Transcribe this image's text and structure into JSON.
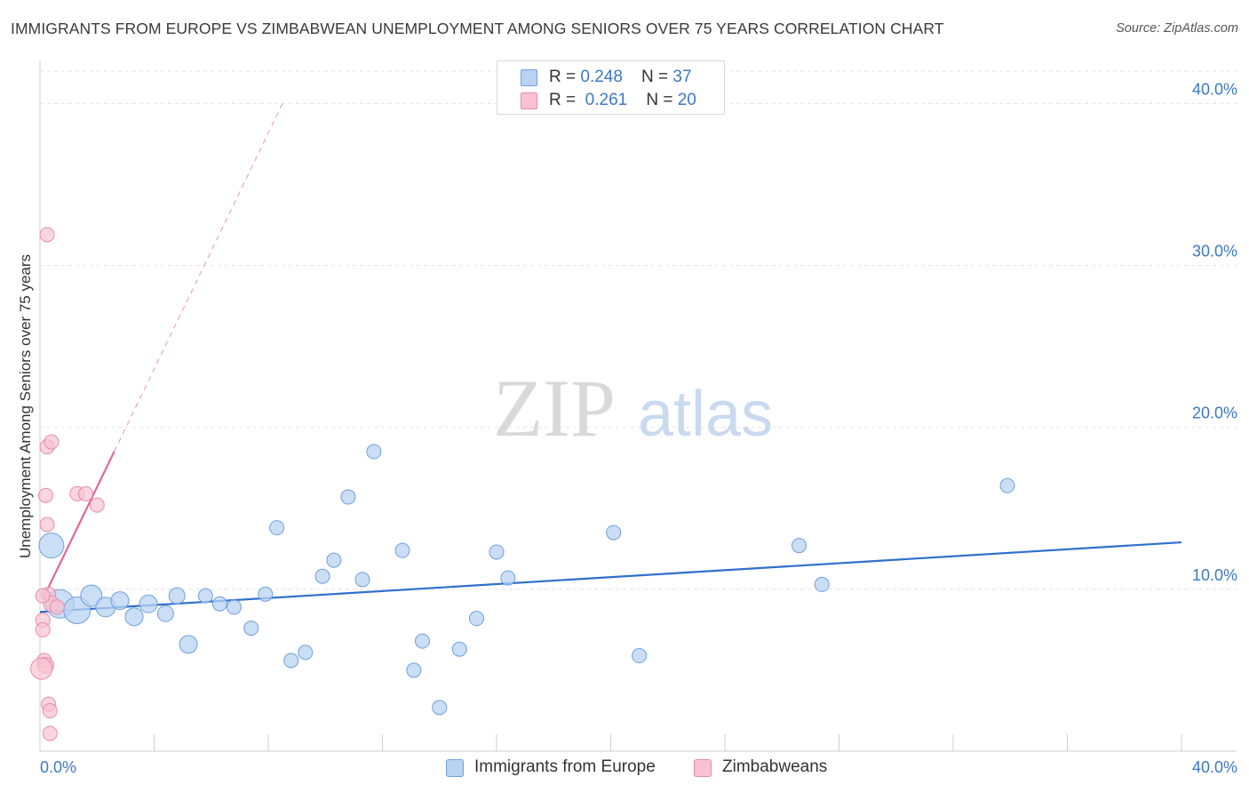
{
  "header": {
    "title": "IMMIGRANTS FROM EUROPE VS ZIMBABWEAN UNEMPLOYMENT AMONG SENIORS OVER 75 YEARS CORRELATION CHART",
    "source": "Source: ZipAtlas.com"
  },
  "legend": {
    "rows": [
      {
        "r_label": "R = ",
        "r_value": "0.248",
        "n_label": "N = ",
        "n_value": "37"
      },
      {
        "r_label": "R = ",
        "r_value": "0.261",
        "n_label": "N = ",
        "n_value": "20"
      }
    ]
  },
  "bottom_legend": {
    "series_a": "Immigrants from Europe",
    "series_b": "Zimbabweans"
  },
  "watermark": {
    "zip": "ZIP",
    "atlas": "atlas"
  },
  "colors": {
    "blue_fill": "#b8d3f2",
    "blue_stroke": "#6f9fdc",
    "blue_line": "#2f6fce",
    "pink_fill": "#f7c3d3",
    "pink_stroke": "#e88aa8",
    "pink_line": "#e0689a",
    "axis_text": "#3d78c8",
    "grid": "#e2e2e2"
  },
  "chart_data": {
    "type": "scatter",
    "title": "IMMIGRANTS FROM EUROPE VS ZIMBABWEAN UNEMPLOYMENT AMONG SENIORS OVER 75 YEARS CORRELATION CHART",
    "xlabel": "",
    "ylabel": "Unemployment Among Seniors over 75 years",
    "xlim": [
      0,
      40
    ],
    "ylim": [
      0,
      42
    ],
    "x_tick_labels": [
      {
        "value": 0,
        "label": "0.0%"
      },
      {
        "value": 40,
        "label": "40.0%"
      }
    ],
    "y_tick_labels": [
      {
        "value": 10,
        "label": "10.0%"
      },
      {
        "value": 20,
        "label": "20.0%"
      },
      {
        "value": 30,
        "label": "30.0%"
      },
      {
        "value": 40,
        "label": "40.0%"
      }
    ],
    "series": [
      {
        "name": "Immigrants from Europe",
        "R": 0.248,
        "N": 37,
        "points": [
          {
            "x": 0.4,
            "y": 12.7,
            "size": 14
          },
          {
            "x": 0.7,
            "y": 9.1,
            "size": 16
          },
          {
            "x": 1.3,
            "y": 8.7,
            "size": 15
          },
          {
            "x": 1.8,
            "y": 9.6,
            "size": 12
          },
          {
            "x": 2.3,
            "y": 8.9,
            "size": 11
          },
          {
            "x": 2.8,
            "y": 9.3,
            "size": 10
          },
          {
            "x": 3.3,
            "y": 8.3,
            "size": 10
          },
          {
            "x": 3.8,
            "y": 9.1,
            "size": 10
          },
          {
            "x": 4.4,
            "y": 8.5,
            "size": 9
          },
          {
            "x": 4.8,
            "y": 9.6,
            "size": 9
          },
          {
            "x": 5.2,
            "y": 6.6,
            "size": 10
          },
          {
            "x": 5.8,
            "y": 9.6,
            "size": 8
          },
          {
            "x": 6.3,
            "y": 9.1,
            "size": 8
          },
          {
            "x": 6.8,
            "y": 8.9,
            "size": 8
          },
          {
            "x": 7.4,
            "y": 7.6,
            "size": 8
          },
          {
            "x": 7.9,
            "y": 9.7,
            "size": 8
          },
          {
            "x": 8.3,
            "y": 13.8,
            "size": 8
          },
          {
            "x": 8.8,
            "y": 5.6,
            "size": 8
          },
          {
            "x": 9.3,
            "y": 6.1,
            "size": 8
          },
          {
            "x": 9.9,
            "y": 10.8,
            "size": 8
          },
          {
            "x": 10.3,
            "y": 11.8,
            "size": 8
          },
          {
            "x": 10.8,
            "y": 15.7,
            "size": 8
          },
          {
            "x": 11.3,
            "y": 10.6,
            "size": 8
          },
          {
            "x": 11.7,
            "y": 18.5,
            "size": 8
          },
          {
            "x": 12.7,
            "y": 12.4,
            "size": 8
          },
          {
            "x": 13.1,
            "y": 5.0,
            "size": 8
          },
          {
            "x": 13.4,
            "y": 6.8,
            "size": 8
          },
          {
            "x": 14.0,
            "y": 2.7,
            "size": 8
          },
          {
            "x": 14.7,
            "y": 6.3,
            "size": 8
          },
          {
            "x": 15.3,
            "y": 8.2,
            "size": 8
          },
          {
            "x": 16.0,
            "y": 12.3,
            "size": 8
          },
          {
            "x": 16.4,
            "y": 10.7,
            "size": 8
          },
          {
            "x": 20.1,
            "y": 13.5,
            "size": 8
          },
          {
            "x": 21.0,
            "y": 5.9,
            "size": 8
          },
          {
            "x": 26.6,
            "y": 12.7,
            "size": 8
          },
          {
            "x": 27.4,
            "y": 10.3,
            "size": 8
          },
          {
            "x": 33.9,
            "y": 16.4,
            "size": 8
          }
        ],
        "trend": {
          "x1": 0,
          "y1": 8.6,
          "x2": 40,
          "y2": 12.9
        }
      },
      {
        "name": "Zimbabweans",
        "R": 0.261,
        "N": 20,
        "points": [
          {
            "x": 0.25,
            "y": 31.9,
            "size": 8
          },
          {
            "x": 0.25,
            "y": 18.8,
            "size": 8
          },
          {
            "x": 0.4,
            "y": 19.1,
            "size": 8
          },
          {
            "x": 0.2,
            "y": 15.8,
            "size": 8
          },
          {
            "x": 0.25,
            "y": 14.0,
            "size": 8
          },
          {
            "x": 1.3,
            "y": 15.9,
            "size": 8
          },
          {
            "x": 1.6,
            "y": 15.9,
            "size": 8
          },
          {
            "x": 2.0,
            "y": 15.2,
            "size": 8
          },
          {
            "x": 0.3,
            "y": 9.7,
            "size": 8
          },
          {
            "x": 0.4,
            "y": 9.1,
            "size": 9
          },
          {
            "x": 0.6,
            "y": 8.9,
            "size": 8
          },
          {
            "x": 0.1,
            "y": 8.1,
            "size": 8
          },
          {
            "x": 0.1,
            "y": 7.5,
            "size": 8
          },
          {
            "x": 0.15,
            "y": 5.6,
            "size": 8
          },
          {
            "x": 0.2,
            "y": 5.3,
            "size": 9
          },
          {
            "x": 0.05,
            "y": 5.1,
            "size": 12
          },
          {
            "x": 0.3,
            "y": 2.9,
            "size": 8
          },
          {
            "x": 0.35,
            "y": 2.5,
            "size": 8
          },
          {
            "x": 0.35,
            "y": 1.1,
            "size": 8
          },
          {
            "x": 0.1,
            "y": 9.6,
            "size": 8
          }
        ],
        "trend_solid": {
          "x1": 0.1,
          "y1": 9.4,
          "x2": 2.6,
          "y2": 18.5
        },
        "trend_dashed": {
          "x1": 2.6,
          "y1": 18.5,
          "x2": 8.5,
          "y2": 40.0
        }
      }
    ]
  }
}
